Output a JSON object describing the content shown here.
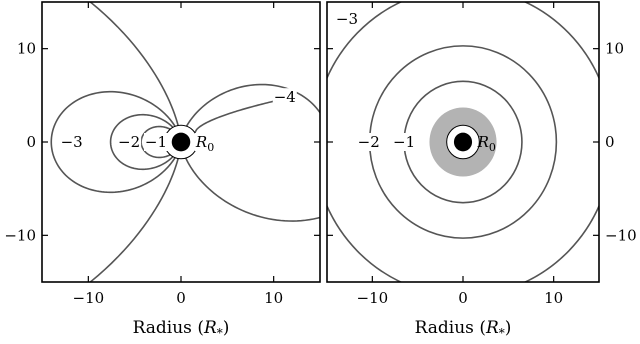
{
  "chart_data": [
    {
      "type": "contour",
      "panel": "left",
      "xlim": [
        -15,
        15
      ],
      "ylim": [
        -15,
        15
      ],
      "xticks": [
        -10,
        0,
        10
      ],
      "yticks": [
        -10,
        0,
        10
      ],
      "xlabel": "Radius (R*)",
      "xlabel_parts": {
        "prefix": "Radius (",
        "symbol": "R",
        "subscript": "*",
        "suffix": ")"
      },
      "ylabel": "",
      "source_radius": 1,
      "inner_circle_radius": 1.8,
      "contour_levels": [
        -1,
        -2,
        -3,
        -4
      ],
      "contour_labels": [
        {
          "text": "−1",
          "x": -2.7,
          "y": 0
        },
        {
          "text": "−2",
          "x": -5.6,
          "y": 0
        },
        {
          "text": "−3",
          "x": -11.8,
          "y": 0
        },
        {
          "text": "−4",
          "x": 11.2,
          "y": 4.8
        }
      ],
      "r0_label": {
        "symbol": "R",
        "subscript": "0"
      },
      "shaded_region_radius": 0
    },
    {
      "type": "contour",
      "panel": "right",
      "xlim": [
        -15,
        15
      ],
      "ylim": [
        -15,
        15
      ],
      "xticks": [
        -10,
        0,
        10
      ],
      "yticks": [
        -10,
        0,
        10
      ],
      "xlabel": "Radius (R*)",
      "xlabel_parts": {
        "prefix": "Radius (",
        "symbol": "R",
        "subscript": "*",
        "suffix": ")"
      },
      "ylabel": "",
      "source_radius": 1,
      "inner_circle_radius": 1.8,
      "contour_levels": [
        -1,
        -2,
        -3
      ],
      "contour_radii": [
        6.5,
        10.3,
        16.5
      ],
      "contour_labels": [
        {
          "text": "−1",
          "x": -6.5,
          "y": 0
        },
        {
          "text": "−2",
          "x": -10.4,
          "y": 0
        },
        {
          "text": "−3",
          "x": -12.8,
          "y": 13.2
        }
      ],
      "r0_label": {
        "symbol": "R",
        "subscript": "0"
      },
      "shaded_region_radius": 3.7
    }
  ],
  "colors": {
    "contour": "#555555",
    "shade": "#b3b3b3",
    "frame": "#000000",
    "source": "#000000"
  }
}
